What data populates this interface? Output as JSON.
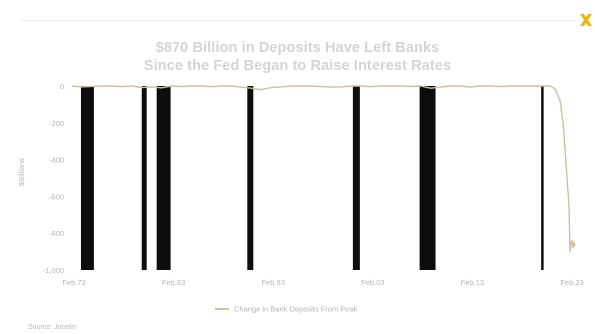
{
  "page": {
    "title_line1": "$870 Billion in Deposits Have Left Banks",
    "title_line2": "Since the Fed Began to Raise Interest Rates",
    "source": "Source: Jocelin"
  },
  "colors": {
    "line": "#cfc19f",
    "recession_bars": "#0d0d0d",
    "text": "#b5b5b5",
    "logo": "#e8b61a"
  },
  "chart_data": {
    "type": "line",
    "title": "$870 Billion in Deposits Have Left Banks Since the Fed Began to Raise Interest Rates",
    "ylabel": "$Billions",
    "xlabel": "",
    "ylim": [
      -1000,
      0
    ],
    "y_ticks": [
      0,
      -200,
      -400,
      -600,
      -800,
      -1000
    ],
    "y_tick_labels": [
      "0",
      "-200",
      "-400",
      "-600",
      "-800",
      "-1,000"
    ],
    "xlim": [
      1973,
      2023.6
    ],
    "x_ticks": [
      1973,
      1983,
      1993,
      2003,
      2013,
      2023
    ],
    "x_tick_labels": [
      "Feb.73",
      "Feb.83",
      "Feb.93",
      "Feb.03",
      "Feb.13",
      "Feb.23"
    ],
    "grid": false,
    "legend": "bottom-center",
    "series": [
      {
        "name": "Change in Bank Deposits From Peak",
        "x": [
          1973,
          1974,
          1975,
          1976,
          1977,
          1978,
          1979,
          1980,
          1981,
          1982,
          1983,
          1984,
          1985,
          1986,
          1987,
          1988,
          1989,
          1990,
          1991,
          1992,
          1993,
          1994,
          1995,
          1996,
          1997,
          1998,
          1999,
          2000,
          2001,
          2002,
          2003,
          2004,
          2005,
          2006,
          2007,
          2008,
          2009,
          2010,
          2011,
          2012,
          2013,
          2014,
          2015,
          2016,
          2017,
          2018,
          2019,
          2020,
          2021,
          2021.5,
          2022,
          2022.3,
          2022.6,
          2022.9,
          2023,
          2023.1,
          2023.2,
          2023.3,
          2023.4,
          2023.5
        ],
        "values": [
          0,
          -5,
          -2,
          0,
          0,
          -3,
          0,
          -8,
          -5,
          -10,
          0,
          -3,
          0,
          0,
          -4,
          0,
          0,
          -6,
          -12,
          -20,
          -8,
          -5,
          0,
          0,
          0,
          -3,
          -6,
          -5,
          0,
          0,
          -4,
          0,
          0,
          0,
          -2,
          0,
          -12,
          -5,
          0,
          0,
          -6,
          0,
          0,
          -3,
          0,
          0,
          0,
          0,
          0,
          -15,
          -80,
          -200,
          -420,
          -650,
          -900,
          -860,
          -840,
          -880,
          -850,
          -870
        ]
      }
    ],
    "shaded_periods": [
      {
        "start": 1973.9,
        "end": 1975.2
      },
      {
        "start": 1980.0,
        "end": 1980.5
      },
      {
        "start": 1981.5,
        "end": 1982.9
      },
      {
        "start": 1990.6,
        "end": 1991.2
      },
      {
        "start": 2001.2,
        "end": 2001.9
      },
      {
        "start": 2007.9,
        "end": 2009.5
      },
      {
        "start": 2020.1,
        "end": 2020.35
      }
    ]
  }
}
